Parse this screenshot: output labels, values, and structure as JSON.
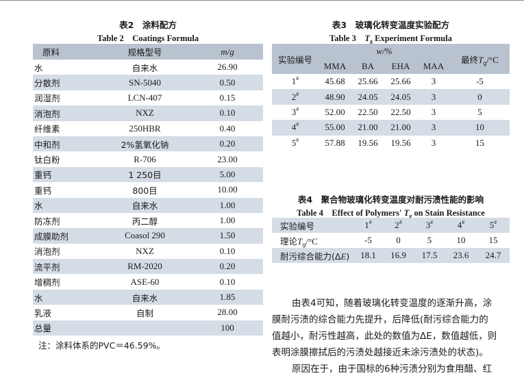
{
  "table2": {
    "caption_zh": "表2　涂料配方",
    "caption_en": "Table 2　Coatings Formula",
    "headers": [
      "原料",
      "规格型号",
      "m/g"
    ],
    "rows": [
      [
        "水",
        "自来水",
        "26.90"
      ],
      [
        "分散剂",
        "SN-5040",
        "0.50"
      ],
      [
        "润湿剂",
        "LCN-407",
        "0.15"
      ],
      [
        "消泡剂",
        "NXZ",
        "0.10"
      ],
      [
        "纤维素",
        "250HBR",
        "0.40"
      ],
      [
        "中和剂",
        "2%氢氧化钠",
        "0.20"
      ],
      [
        "钛白粉",
        "R-706",
        "23.00"
      ],
      [
        "重钙",
        "1 250目",
        "5.00"
      ],
      [
        "重钙",
        "800目",
        "10.00"
      ],
      [
        "水",
        "自来水",
        "1.00"
      ],
      [
        "防冻剂",
        "丙二醇",
        "1.00"
      ],
      [
        "成膜助剂",
        "Coasol 290",
        "1.50"
      ],
      [
        "消泡剂",
        "NXZ",
        "0.10"
      ],
      [
        "流平剂",
        "RM-2020",
        "0.20"
      ],
      [
        "增稠剂",
        "ASE-60",
        "0.10"
      ],
      [
        "水",
        "自来水",
        "1.85"
      ],
      [
        "乳液",
        "自制",
        "28.00"
      ],
      [
        "总量",
        "",
        "100"
      ]
    ],
    "note": "注：涂料体系的PVC＝46.59%。"
  },
  "table3": {
    "caption_zh": "表3　玻璃化转变温度实验配方",
    "caption_en_prefix": "Table 3　",
    "caption_en_var": "T",
    "caption_en_sub": "g",
    "caption_en_suffix": " Experiment Formula",
    "header_id": "实验编号",
    "header_group": "w/%",
    "header_cols": [
      "MMA",
      "BA",
      "EHA",
      "MAA"
    ],
    "header_tg_prefix": "最终",
    "header_tg_var": "T",
    "header_tg_sub": "g",
    "header_tg_unit": "/°C",
    "rows": [
      {
        "id": "1",
        "mark": "#",
        "v": [
          "45.68",
          "25.66",
          "25.66",
          "3"
        ],
        "tg": "-5"
      },
      {
        "id": "2",
        "mark": "#",
        "v": [
          "48.90",
          "24.05",
          "24.05",
          "3"
        ],
        "tg": "0"
      },
      {
        "id": "3",
        "mark": "#",
        "v": [
          "52.00",
          "22.50",
          "22.50",
          "3"
        ],
        "tg": "5"
      },
      {
        "id": "4",
        "mark": "#",
        "v": [
          "55.00",
          "21.00",
          "21.00",
          "3"
        ],
        "tg": "10"
      },
      {
        "id": "5",
        "mark": "#",
        "v": [
          "57.88",
          "19.56",
          "19.56",
          "3"
        ],
        "tg": "15"
      }
    ]
  },
  "table4": {
    "caption_zh": "表4　聚合物玻璃化转变温度对耐污渍性能的影响",
    "caption_en_prefix": "Table 4　Effect of Polymers' ",
    "caption_en_var": "T",
    "caption_en_sub": "g",
    "caption_en_suffix": " on Stain Resistance",
    "row1_label": "实验编号",
    "ids": [
      "1",
      "2",
      "3",
      "4",
      "5"
    ],
    "mark": "#",
    "row2_label_prefix": "理论",
    "row2_label_var": "T",
    "row2_label_sub": "g",
    "row2_label_unit": "/°C",
    "tg_values": [
      "-5",
      "0",
      "5",
      "10",
      "15"
    ],
    "row3_label_prefix": "耐污综合能力(Δ",
    "row3_label_var": "E",
    "row3_label_suffix": ")",
    "stain_values": [
      "18.1",
      "16.9",
      "17.5",
      "23.6",
      "24.7"
    ]
  },
  "paragraph": {
    "lines": [
      "由表4可知，随着玻璃化转变温度的逐渐升高，涂",
      "膜耐污渍的综合能力先提升，后降低(耐污综合能力的",
      "值越小，耐污性越高，此处的数值为ΔE，数值越低，则",
      "表明涂膜擦拭后的污渍处越接近未涂污渍处的状态)。",
      "原因在于，由于国标的6种污渍分别为食用醋、红"
    ]
  }
}
